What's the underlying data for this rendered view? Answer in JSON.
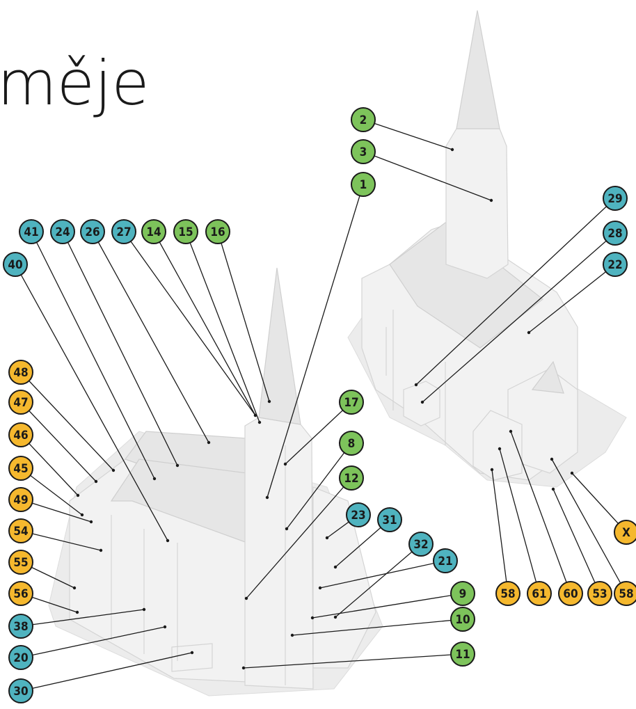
{
  "header": {
    "title": "měje"
  },
  "callouts": [
    {
      "label": "2",
      "color": "#7dc35b"
    },
    {
      "label": "3",
      "color": "#7dc35b"
    },
    {
      "label": "1",
      "color": "#7dc35b"
    },
    {
      "label": "41",
      "color": "#4fb3bf"
    },
    {
      "label": "24",
      "color": "#4fb3bf"
    },
    {
      "label": "26",
      "color": "#4fb3bf"
    },
    {
      "label": "27",
      "color": "#4fb3bf"
    },
    {
      "label": "14",
      "color": "#7dc35b"
    },
    {
      "label": "15",
      "color": "#7dc35b"
    },
    {
      "label": "16",
      "color": "#7dc35b"
    },
    {
      "label": "40",
      "color": "#4fb3bf"
    },
    {
      "label": "29",
      "color": "#4fb3bf"
    },
    {
      "label": "28",
      "color": "#4fb3bf"
    },
    {
      "label": "22",
      "color": "#4fb3bf"
    },
    {
      "label": "48",
      "color": "#f5b82e"
    },
    {
      "label": "47",
      "color": "#f5b82e"
    },
    {
      "label": "46",
      "color": "#f5b82e"
    },
    {
      "label": "45",
      "color": "#f5b82e"
    },
    {
      "label": "49",
      "color": "#f5b82e"
    },
    {
      "label": "54",
      "color": "#f5b82e"
    },
    {
      "label": "55",
      "color": "#f5b82e"
    },
    {
      "label": "56",
      "color": "#f5b82e"
    },
    {
      "label": "38",
      "color": "#4fb3bf"
    },
    {
      "label": "20",
      "color": "#4fb3bf"
    },
    {
      "label": "30",
      "color": "#4fb3bf"
    },
    {
      "label": "17",
      "color": "#7dc35b"
    },
    {
      "label": "8",
      "color": "#7dc35b"
    },
    {
      "label": "12",
      "color": "#7dc35b"
    },
    {
      "label": "23",
      "color": "#4fb3bf"
    },
    {
      "label": "31",
      "color": "#4fb3bf"
    },
    {
      "label": "32",
      "color": "#4fb3bf"
    },
    {
      "label": "21",
      "color": "#4fb3bf"
    },
    {
      "label": "9",
      "color": "#7dc35b"
    },
    {
      "label": "10",
      "color": "#7dc35b"
    },
    {
      "label": "11",
      "color": "#7dc35b"
    },
    {
      "label": "X",
      "color": "#f5b82e"
    },
    {
      "label": "58",
      "color": "#f5b82e"
    },
    {
      "label": "61",
      "color": "#f5b82e"
    },
    {
      "label": "60",
      "color": "#f5b82e"
    },
    {
      "label": "53",
      "color": "#f5b82e"
    },
    {
      "label": "58",
      "color": "#f5b82e"
    }
  ]
}
